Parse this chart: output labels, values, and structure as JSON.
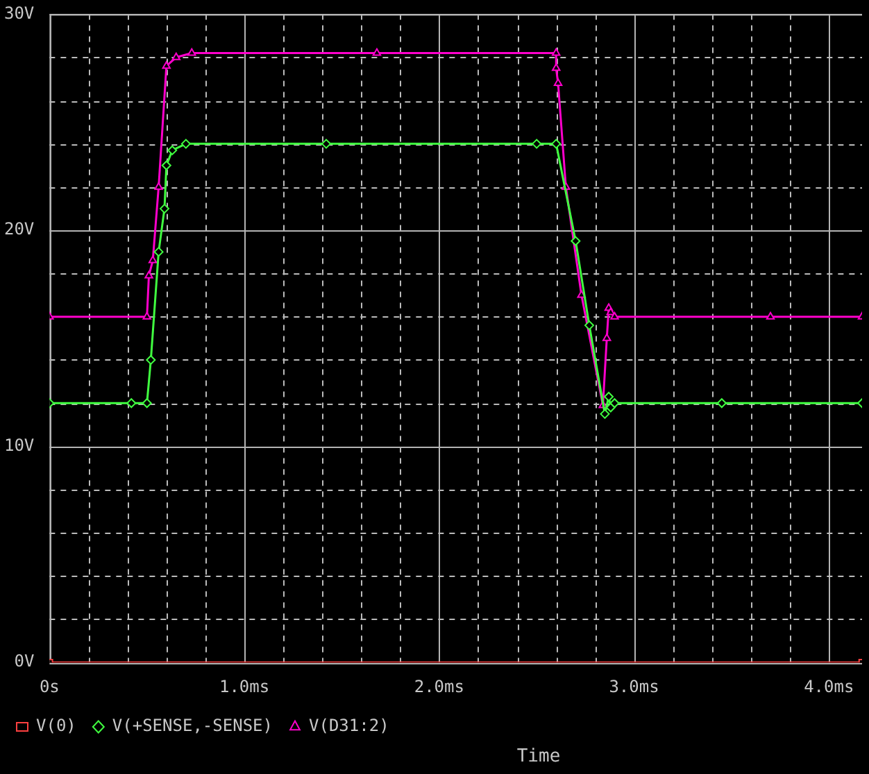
{
  "chart_data": {
    "type": "line",
    "xlabel": "Time",
    "xlim": [
      0,
      4.17
    ],
    "ylim": [
      0,
      30
    ],
    "xticks": [
      {
        "value": 0,
        "label": "0s"
      },
      {
        "value": 0.2,
        "label": null
      },
      {
        "value": 0.4,
        "label": null
      },
      {
        "value": 0.6,
        "label": null
      },
      {
        "value": 0.8,
        "label": null
      },
      {
        "value": 1,
        "label": "1.0ms"
      },
      {
        "value": 1.2,
        "label": null
      },
      {
        "value": 1.4,
        "label": null
      },
      {
        "value": 1.6,
        "label": null
      },
      {
        "value": 1.8,
        "label": null
      },
      {
        "value": 2,
        "label": "2.0ms"
      },
      {
        "value": 2.2,
        "label": null
      },
      {
        "value": 2.4,
        "label": null
      },
      {
        "value": 2.6,
        "label": null
      },
      {
        "value": 2.8,
        "label": null
      },
      {
        "value": 3,
        "label": "3.0ms"
      },
      {
        "value": 3.2,
        "label": null
      },
      {
        "value": 3.4,
        "label": null
      },
      {
        "value": 3.6,
        "label": null
      },
      {
        "value": 3.8,
        "label": null
      },
      {
        "value": 4,
        "label": "4.0ms"
      }
    ],
    "yticks": [
      {
        "value": 0,
        "label": "0V"
      },
      {
        "value": 2,
        "label": null
      },
      {
        "value": 4,
        "label": null
      },
      {
        "value": 6,
        "label": null
      },
      {
        "value": 8,
        "label": null
      },
      {
        "value": 10,
        "label": "10V"
      },
      {
        "value": 12,
        "label": null
      },
      {
        "value": 14,
        "label": null
      },
      {
        "value": 16,
        "label": null
      },
      {
        "value": 18,
        "label": null
      },
      {
        "value": 20,
        "label": "20V"
      },
      {
        "value": 22,
        "label": null
      },
      {
        "value": 24,
        "label": null
      },
      {
        "value": 26,
        "label": null
      },
      {
        "value": 28,
        "label": null
      },
      {
        "value": 30,
        "label": "30V"
      }
    ],
    "grid": true,
    "legend": "bottom",
    "line_style": "solid",
    "series": [
      {
        "name": "V(0)",
        "color": "#ff4040",
        "marker": "square",
        "x": [
          0,
          4.17
        ],
        "values": [
          0,
          0
        ]
      },
      {
        "name": "V(+SENSE,-SENSE)",
        "color": "#40ff40",
        "marker": "diamond",
        "x": [
          0,
          0.42,
          0.5,
          0.52,
          0.56,
          0.59,
          0.6,
          0.63,
          0.7,
          1.42,
          2.5,
          2.6,
          2.7,
          2.77,
          2.85,
          2.87,
          2.88,
          2.9,
          3.45,
          4.17
        ],
        "values": [
          12,
          12,
          12,
          14,
          19,
          21,
          23,
          23.7,
          24,
          24,
          24,
          24,
          19.5,
          15.6,
          11.5,
          12.3,
          11.8,
          12,
          12,
          12
        ]
      },
      {
        "name": "V(D31:2)",
        "color": "#ff00cc",
        "marker": "triangle",
        "x": [
          0,
          0.5,
          0.51,
          0.53,
          0.56,
          0.6,
          0.65,
          0.73,
          1.68,
          2.6,
          2.6,
          2.61,
          2.65,
          2.73,
          2.84,
          2.86,
          2.87,
          2.88,
          2.9,
          3.7,
          4.17
        ],
        "values": [
          16,
          16,
          17.9,
          18.6,
          22,
          27.6,
          28,
          28.2,
          28.2,
          28.2,
          27.5,
          26.8,
          22,
          17,
          11.9,
          15,
          16.4,
          16.2,
          16,
          16,
          16
        ]
      }
    ]
  }
}
